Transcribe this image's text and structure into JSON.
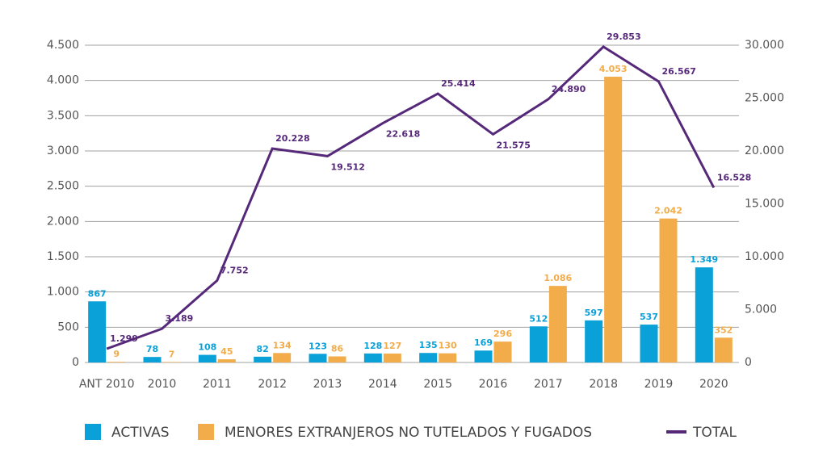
{
  "chart_data": {
    "type": "bar",
    "categories": [
      "ANT 2010",
      "2010",
      "2011",
      "2012",
      "2013",
      "2014",
      "2015",
      "2016",
      "2017",
      "2018",
      "2019",
      "2020"
    ],
    "series": [
      {
        "name": "ACTIVAS",
        "color": "#0aa0d8",
        "type": "bar",
        "values": [
          867,
          78,
          108,
          82,
          123,
          128,
          135,
          169,
          512,
          597,
          537,
          1349
        ],
        "value_labels": [
          "867",
          "78",
          "108",
          "82",
          "123",
          "128",
          "135",
          "169",
          "512",
          "597",
          "537",
          "1.349"
        ]
      },
      {
        "name": "MENORES EXTRANJEROS NO TUTELADOS Y FUGADOS",
        "color": "#f2ac4a",
        "type": "bar",
        "values": [
          9,
          7,
          45,
          134,
          86,
          127,
          130,
          296,
          1086,
          4053,
          2042,
          352
        ],
        "value_labels": [
          "9",
          "7",
          "45",
          "134",
          "86",
          "127",
          "130",
          "296",
          "1.086",
          "4.053",
          "2.042",
          "352"
        ]
      },
      {
        "name": "TOTAL",
        "color": "#56287a",
        "type": "line",
        "axis": "y2",
        "values": [
          1299,
          3189,
          7752,
          20228,
          19512,
          22618,
          25414,
          21575,
          24890,
          29853,
          26567,
          16528
        ],
        "value_labels": [
          "1.299",
          "3.189",
          "7.752",
          "20.228",
          "19.512",
          "22.618",
          "25.414",
          "21.575",
          "24.890",
          "29.853",
          "26.567",
          "16.528"
        ]
      }
    ],
    "ylim": [
      0,
      4500
    ],
    "yticks": [
      0,
      500,
      {
        "value": 1000,
        "label": "1.000"
      },
      {
        "value": 1500,
        "label": "1.500"
      },
      {
        "value": 2000,
        "label": "2.000"
      },
      {
        "value": 2500,
        "label": "2.500"
      },
      {
        "value": 3000,
        "label": "3.000"
      },
      {
        "value": 3500,
        "label": "3.500"
      },
      {
        "value": 4000,
        "label": "4.000"
      },
      {
        "value": 4500,
        "label": "4.500"
      }
    ],
    "y2lim": [
      0,
      30000
    ],
    "y2ticks": [
      0,
      {
        "value": 5000,
        "label": "5.000"
      },
      {
        "value": 10000,
        "label": "10.000"
      },
      {
        "value": 15000,
        "label": "15.000"
      },
      {
        "value": 20000,
        "label": "20.000"
      },
      {
        "value": 25000,
        "label": "25.000"
      },
      {
        "value": 30000,
        "label": "30.000"
      }
    ],
    "grid": true,
    "legend": "bottom"
  }
}
